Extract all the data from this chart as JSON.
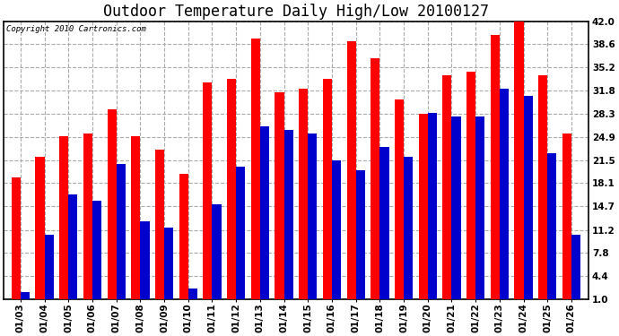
{
  "title": "Outdoor Temperature Daily High/Low 20100127",
  "copyright": "Copyright 2010 Cartronics.com",
  "dates": [
    "01/03",
    "01/04",
    "01/05",
    "01/06",
    "01/07",
    "01/08",
    "01/09",
    "01/10",
    "01/11",
    "01/12",
    "01/13",
    "01/14",
    "01/15",
    "01/16",
    "01/17",
    "01/18",
    "01/19",
    "01/20",
    "01/21",
    "01/22",
    "01/23",
    "01/24",
    "01/25",
    "01/26"
  ],
  "highs": [
    19.0,
    22.0,
    25.0,
    25.5,
    29.0,
    25.0,
    23.0,
    19.5,
    33.0,
    33.5,
    39.5,
    31.5,
    32.0,
    33.5,
    39.0,
    36.5,
    30.5,
    28.3,
    34.0,
    34.5,
    40.0,
    42.5,
    34.0,
    25.5
  ],
  "lows": [
    2.0,
    10.5,
    16.5,
    15.5,
    21.0,
    12.5,
    11.5,
    2.5,
    15.0,
    20.5,
    26.5,
    26.0,
    25.5,
    21.5,
    20.0,
    23.5,
    22.0,
    28.5,
    28.0,
    28.0,
    32.0,
    31.0,
    22.5,
    10.5
  ],
  "high_color": "#ff0000",
  "low_color": "#0000cc",
  "fig_bg_color": "#ffffff",
  "plot_bg_color": "#ffffff",
  "grid_color": "#aaaaaa",
  "grid_linestyle": "--",
  "grid_linewidth": 0.8,
  "yticks": [
    1.0,
    4.4,
    7.8,
    11.2,
    14.7,
    18.1,
    21.5,
    24.9,
    28.3,
    31.8,
    35.2,
    38.6,
    42.0
  ],
  "ylim_min": 1.0,
  "ylim_max": 42.0,
  "bar_width": 0.38,
  "title_fontsize": 12,
  "tick_fontsize": 7.5,
  "copyright_fontsize": 6.5
}
